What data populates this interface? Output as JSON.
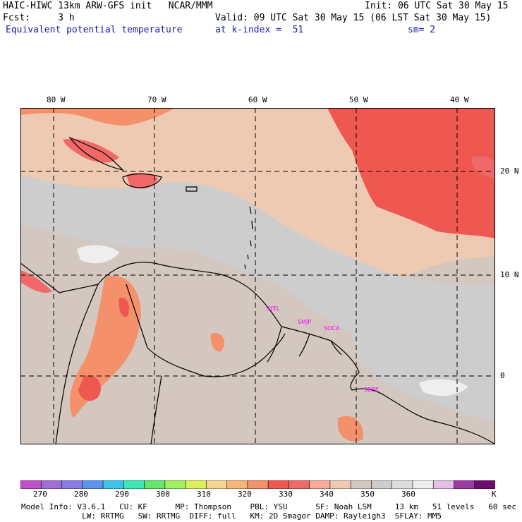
{
  "header": {
    "title": "HAIC-HIWC 13km ARW-GFS init   NCAR/MMM",
    "fcst": "Fcst:     3 h",
    "field": "Equivalent potential temperature",
    "init": "Init: 06 UTC Sat 30 May 15",
    "valid": "Valid: 09 UTC Sat 30 May 15 (06 LST Sat 30 May 15)",
    "level": "at k-index =  51",
    "smooth": "sm= 2"
  },
  "map": {
    "lon_labels": [
      "80 W",
      "70 W",
      "60 W",
      "50 W",
      "40 W"
    ],
    "lat_labels": [
      "20 N",
      "10 N",
      "0"
    ],
    "stations": [
      "SYEL",
      "SMJP",
      "SOCA",
      "SBBE"
    ],
    "station_color": "#ff00ff",
    "background_color": "#d3c7bf"
  },
  "colorbar": {
    "labels": [
      "270",
      "280",
      "290",
      "300",
      "310",
      "320",
      "330",
      "340",
      "350",
      "360",
      "K"
    ],
    "colors": [
      "#c04fc8",
      "#9f6fd8",
      "#8a7ce8",
      "#5a94ef",
      "#3bc5e8",
      "#3ee8b6",
      "#62e86a",
      "#a2ef5f",
      "#dcef5b",
      "#f6d58e",
      "#f7b57a",
      "#f4906a",
      "#ef5850",
      "#f06868",
      "#f6ab9a",
      "#efcab2",
      "#d3c7bf",
      "#cdcdcd",
      "#dddddd",
      "#eeeeee",
      "#e2bfe5",
      "#9a3aa3",
      "#6f0d6f"
    ]
  },
  "model_info": {
    "line1": "Model Info: V3.6.1   CU: KF      MP: Thompson    PBL: YSU      SF: Noah LSM     13 km   51 levels   60 sec",
    "line2": "             LW: RRTMG   SW: RRTMG  DIFF: full   KM: 2D Smagor DAMP: Rayleigh3  SFLAY: MM5"
  }
}
